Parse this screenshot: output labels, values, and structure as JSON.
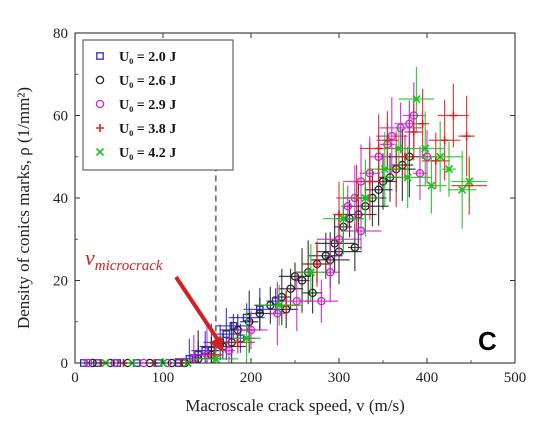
{
  "chart_data": {
    "type": "scatter",
    "title": "",
    "xlabel": "Macroscale crack speed, v (m/s)",
    "ylabel": "Density of conics marks, ρ (1/mm²)",
    "xlim": [
      0,
      500
    ],
    "ylim": [
      0,
      80
    ],
    "xticks": [
      "0",
      "100",
      "200",
      "300",
      "400",
      "500"
    ],
    "yticks": [
      "0",
      "20",
      "40",
      "60",
      "80"
    ],
    "grid": false,
    "legend_position": "top-left",
    "panel_label": "C",
    "threshold_line": {
      "x": 160,
      "style": "dashed",
      "color": "#777777"
    },
    "annotation": {
      "text": "v_microcrack",
      "display": "v",
      "subscript": "microcrack",
      "color": "#d42020",
      "points_to": [
        160,
        2
      ]
    },
    "series": [
      {
        "name": "U0 = 2.0 J",
        "legend_label": "U₀ = 2.0 J",
        "marker": "square",
        "color": "#2a2ad8",
        "points": [
          [
            10,
            0
          ],
          [
            25,
            0
          ],
          [
            48,
            0
          ],
          [
            70,
            0
          ],
          [
            95,
            0
          ],
          [
            118,
            0
          ],
          [
            130,
            1
          ],
          [
            140,
            2
          ],
          [
            148,
            3
          ],
          [
            155,
            3
          ],
          [
            165,
            5
          ],
          [
            172,
            7
          ],
          [
            180,
            9
          ],
          [
            188,
            6
          ],
          [
            195,
            11
          ],
          [
            210,
            13
          ],
          [
            228,
            15
          ]
        ]
      },
      {
        "name": "U0 = 2.6 J",
        "legend_label": "U₀ = 2.6 J",
        "marker": "circle",
        "color": "#222222",
        "points": [
          [
            20,
            0
          ],
          [
            40,
            0
          ],
          [
            60,
            0
          ],
          [
            85,
            0
          ],
          [
            110,
            0
          ],
          [
            125,
            0
          ],
          [
            140,
            1
          ],
          [
            155,
            2
          ],
          [
            168,
            4
          ],
          [
            178,
            5
          ],
          [
            185,
            8
          ],
          [
            198,
            10
          ],
          [
            210,
            12
          ],
          [
            222,
            14
          ],
          [
            235,
            16
          ],
          [
            245,
            18
          ],
          [
            258,
            20
          ],
          [
            265,
            22
          ],
          [
            275,
            24
          ],
          [
            285,
            26
          ],
          [
            295,
            29
          ],
          [
            305,
            33
          ],
          [
            312,
            35
          ],
          [
            318,
            28
          ],
          [
            322,
            36
          ],
          [
            330,
            38
          ],
          [
            338,
            40
          ],
          [
            345,
            42
          ],
          [
            350,
            44
          ],
          [
            358,
            45
          ],
          [
            365,
            47
          ],
          [
            372,
            48
          ],
          [
            380,
            50
          ],
          [
            300,
            27
          ],
          [
            290,
            25
          ],
          [
            250,
            21
          ],
          [
            240,
            13
          ],
          [
            270,
            17
          ]
        ]
      },
      {
        "name": "U0 = 2.9 J",
        "legend_label": "U₀ = 2.9 J",
        "marker": "circle",
        "color": "#d020d0",
        "points": [
          [
            15,
            0
          ],
          [
            45,
            0
          ],
          [
            78,
            0
          ],
          [
            105,
            0
          ],
          [
            135,
            1
          ],
          [
            150,
            2
          ],
          [
            175,
            3
          ],
          [
            200,
            8
          ],
          [
            230,
            12
          ],
          [
            252,
            15
          ],
          [
            280,
            15
          ],
          [
            290,
            22
          ],
          [
            300,
            30
          ],
          [
            310,
            38
          ],
          [
            318,
            40
          ],
          [
            325,
            44
          ],
          [
            335,
            46
          ],
          [
            345,
            50
          ],
          [
            355,
            53
          ],
          [
            360,
            55
          ],
          [
            370,
            57
          ],
          [
            380,
            58
          ],
          [
            385,
            60
          ],
          [
            392,
            46
          ],
          [
            400,
            50
          ],
          [
            325,
            32
          ]
        ]
      },
      {
        "name": "U0 = 3.8 J",
        "legend_label": "U₀ = 3.8 J",
        "marker": "plus",
        "color": "#e02020",
        "points": [
          [
            30,
            0
          ],
          [
            55,
            0
          ],
          [
            90,
            0
          ],
          [
            120,
            0
          ],
          [
            158,
            2
          ],
          [
            185,
            5
          ],
          [
            240,
            14
          ],
          [
            275,
            24
          ],
          [
            300,
            36
          ],
          [
            320,
            40
          ],
          [
            335,
            44
          ],
          [
            345,
            52
          ],
          [
            355,
            54
          ],
          [
            365,
            47
          ],
          [
            375,
            50
          ],
          [
            385,
            56
          ],
          [
            395,
            58
          ],
          [
            410,
            49
          ],
          [
            420,
            54
          ],
          [
            430,
            60
          ],
          [
            445,
            55
          ],
          [
            448,
            43
          ]
        ]
      },
      {
        "name": "U0 = 4.2 J",
        "legend_label": "U₀ = 4.2 J",
        "marker": "cross",
        "color": "#20c020",
        "points": [
          [
            35,
            0
          ],
          [
            65,
            0
          ],
          [
            100,
            0
          ],
          [
            128,
            0
          ],
          [
            160,
            1
          ],
          [
            195,
            6
          ],
          [
            232,
            14
          ],
          [
            268,
            22
          ],
          [
            305,
            35
          ],
          [
            330,
            40
          ],
          [
            352,
            47
          ],
          [
            368,
            52
          ],
          [
            378,
            45
          ],
          [
            388,
            64
          ],
          [
            398,
            52
          ],
          [
            405,
            43
          ],
          [
            415,
            50
          ],
          [
            425,
            47
          ],
          [
            440,
            42
          ],
          [
            448,
            44
          ]
        ]
      }
    ]
  }
}
